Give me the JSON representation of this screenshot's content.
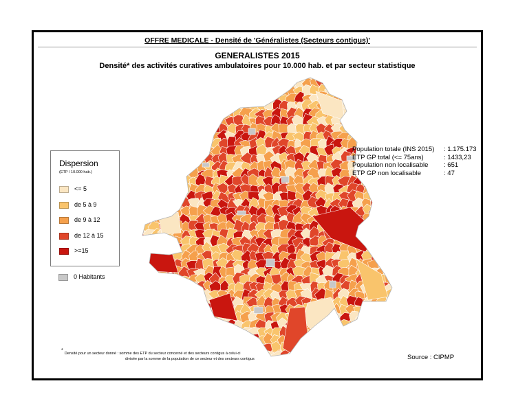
{
  "header": {
    "title": "OFFRE MEDICALE - Densité de 'Généralistes (Secteurs contigus)'"
  },
  "map": {
    "title": "GENERALISTES 2015",
    "subtitle": "Densité* des activités curatives ambulatoires pour 10.000 hab. et par secteur statistique",
    "colors": {
      "class_1": "#fbe6c2",
      "class_2": "#f9c46c",
      "class_3": "#f5a04c",
      "class_4": "#e0462a",
      "class_5": "#c9160f",
      "zero": "#c8c8c8",
      "border": "#ffffff"
    }
  },
  "legend": {
    "title": "Dispersion",
    "subtitle": "(ETP / 10.000 hab.)",
    "items": [
      {
        "label": "<= 5",
        "color": "#fbe6c2"
      },
      {
        "label": "de 5 à 9",
        "color": "#f9c46c"
      },
      {
        "label": "de 9 à 12",
        "color": "#f5a04c"
      },
      {
        "label": "de 12 à 15",
        "color": "#e0462a"
      },
      {
        "label": ">=15",
        "color": "#c9160f"
      }
    ],
    "zero_label": "0 Habitants",
    "zero_color": "#c8c8c8"
  },
  "stats": [
    {
      "label": "Population totale (INS 2015)",
      "sep": " : ",
      "value": "1.175.173"
    },
    {
      "label": "ETP GP total (<= 75ans)",
      "sep": " : ",
      "value": "1433,23"
    },
    {
      "label": "Population non localisable",
      "sep": " : ",
      "value": "651"
    },
    {
      "label": "ETP GP non localisable",
      "sep": " : ",
      "value": "47"
    }
  ],
  "footnote": {
    "marker": "*",
    "line1": "Densité pour un secteur donné  : somme des ETP du secteur concerné et des secteurs contigus à celui-ci",
    "line2": "divisée  par la somme de la population de ce secteur et des secteurs contigus"
  },
  "source": "Source : CIPMP"
}
